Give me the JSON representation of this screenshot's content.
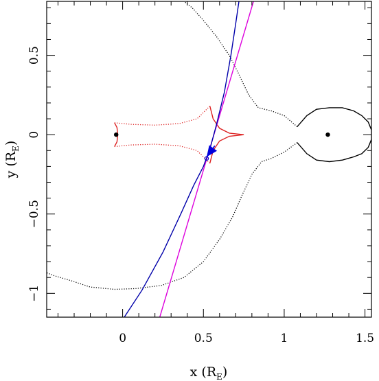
{
  "chart_data": {
    "type": "line",
    "title": "",
    "xlabel": "x (R",
    "xlabel_subscript": "E",
    "xlabel_suffix": ")",
    "ylabel": "y (R",
    "ylabel_subscript": "E",
    "ylabel_suffix": ")",
    "xlim": [
      -0.47,
      1.54
    ],
    "ylim": [
      -1.15,
      0.84
    ],
    "x_ticks": [
      {
        "value": 0,
        "label": "0"
      },
      {
        "value": 0.5,
        "label": "0.5"
      },
      {
        "value": 1,
        "label": "1"
      },
      {
        "value": 1.5,
        "label": "1.5"
      }
    ],
    "y_ticks": [
      {
        "value": -1,
        "label": "−1"
      },
      {
        "value": -0.5,
        "label": "−0.5"
      },
      {
        "value": 0,
        "label": "0"
      },
      {
        "value": 0.5,
        "label": "0.5"
      }
    ],
    "grid": false,
    "series": [
      {
        "style": "solid",
        "color": "#000000",
        "points": [
          [
            1.08,
            -0.05
          ],
          [
            1.14,
            -0.12
          ],
          [
            1.2,
            -0.16
          ],
          [
            1.28,
            -0.17
          ],
          [
            1.36,
            -0.16
          ],
          [
            1.43,
            -0.14
          ],
          [
            1.48,
            -0.12
          ],
          [
            1.52,
            -0.08
          ],
          [
            1.54,
            -0.03
          ],
          [
            1.54,
            0.03
          ],
          [
            1.52,
            0.08
          ],
          [
            1.48,
            0.12
          ],
          [
            1.43,
            0.15
          ],
          [
            1.36,
            0.17
          ],
          [
            1.28,
            0.17
          ],
          [
            1.2,
            0.16
          ],
          [
            1.14,
            0.12
          ],
          [
            1.08,
            0.05
          ]
        ]
      },
      {
        "style": "dotted",
        "color": "#000000",
        "points": [
          [
            1.08,
            0.05
          ],
          [
            1.0,
            0.12
          ],
          [
            0.92,
            0.15
          ],
          [
            0.84,
            0.17
          ],
          [
            0.78,
            0.25
          ],
          [
            0.72,
            0.38
          ],
          [
            0.66,
            0.5
          ],
          [
            0.58,
            0.62
          ],
          [
            0.5,
            0.72
          ],
          [
            0.43,
            0.8
          ],
          [
            0.38,
            0.84
          ]
        ]
      },
      {
        "style": "dotted",
        "color": "#000000",
        "points": [
          [
            1.08,
            -0.05
          ],
          [
            1.0,
            -0.11
          ],
          [
            0.92,
            -0.15
          ],
          [
            0.86,
            -0.17
          ],
          [
            0.8,
            -0.25
          ],
          [
            0.74,
            -0.38
          ],
          [
            0.68,
            -0.52
          ],
          [
            0.6,
            -0.66
          ],
          [
            0.5,
            -0.8
          ],
          [
            0.38,
            -0.9
          ],
          [
            0.24,
            -0.95
          ],
          [
            0.08,
            -0.97
          ],
          [
            -0.05,
            -0.975
          ],
          [
            -0.2,
            -0.96
          ],
          [
            -0.32,
            -0.92
          ],
          [
            -0.42,
            -0.89
          ],
          [
            -0.47,
            -0.87
          ]
        ]
      },
      {
        "style": "solid",
        "color": "#dd2222",
        "points": [
          [
            -0.05,
            0.075
          ],
          [
            -0.035,
            0.045
          ],
          [
            -0.03,
            0.0
          ],
          [
            -0.035,
            -0.045
          ],
          [
            -0.05,
            -0.075
          ]
        ]
      },
      {
        "style": "solid",
        "color": "#dd2222",
        "points": [
          [
            0.54,
            0.18
          ],
          [
            0.56,
            0.1
          ],
          [
            0.6,
            0.04
          ],
          [
            0.66,
            0.01
          ],
          [
            0.75,
            0.0
          ],
          [
            0.66,
            -0.01
          ],
          [
            0.6,
            -0.04
          ],
          [
            0.56,
            -0.1
          ],
          [
            0.54,
            -0.18
          ]
        ]
      },
      {
        "style": "dotted",
        "color": "#dd2222",
        "points": [
          [
            -0.05,
            0.075
          ],
          [
            0.05,
            0.065
          ],
          [
            0.2,
            0.06
          ],
          [
            0.35,
            0.07
          ],
          [
            0.46,
            0.1
          ],
          [
            0.54,
            0.18
          ]
        ]
      },
      {
        "style": "dotted",
        "color": "#dd2222",
        "points": [
          [
            -0.05,
            -0.075
          ],
          [
            0.05,
            -0.065
          ],
          [
            0.2,
            -0.06
          ],
          [
            0.35,
            -0.07
          ],
          [
            0.46,
            -0.1
          ],
          [
            0.54,
            -0.18
          ]
        ]
      },
      {
        "style": "solid",
        "color": "#dd00dd",
        "points": [
          [
            0.23,
            -1.15
          ],
          [
            0.81,
            0.84
          ]
        ]
      },
      {
        "style": "solid",
        "color": "#0000aa",
        "points": [
          [
            0.01,
            -1.15
          ],
          [
            0.12,
            -0.98
          ],
          [
            0.25,
            -0.74
          ],
          [
            0.36,
            -0.5
          ],
          [
            0.44,
            -0.32
          ],
          [
            0.5,
            -0.2
          ],
          [
            0.54,
            -0.09
          ],
          [
            0.58,
            0.06
          ],
          [
            0.63,
            0.27
          ],
          [
            0.67,
            0.5
          ],
          [
            0.7,
            0.7
          ],
          [
            0.72,
            0.84
          ]
        ]
      }
    ],
    "points": [
      {
        "x": -0.04,
        "y": 0.0,
        "color": "#000000"
      },
      {
        "x": 1.27,
        "y": 0.0,
        "color": "#000000"
      }
    ],
    "source_marker": {
      "x": 0.52,
      "y": -0.15,
      "color": "#0000cc"
    },
    "direction_arrow": {
      "x0": 0.57,
      "y0": -0.07,
      "x1": 0.52,
      "y1": -0.14,
      "color": "#0000dd"
    }
  }
}
